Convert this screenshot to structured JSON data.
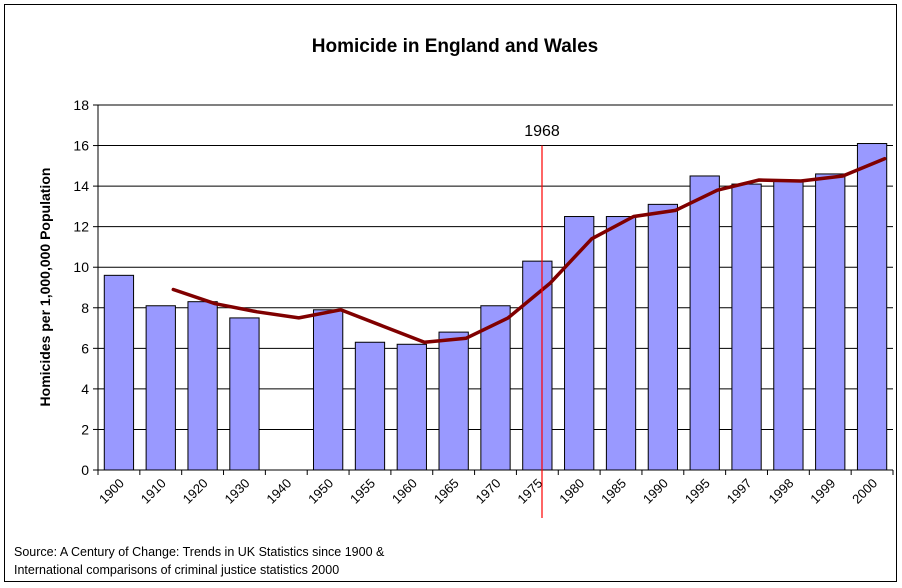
{
  "chart_data": {
    "type": "bar",
    "title": "Homicide in England and Wales",
    "ylabel": "Homicides per 1,000,000 Population",
    "xlabel": "",
    "ylim": [
      0,
      18
    ],
    "yticks": [
      0,
      2,
      4,
      6,
      8,
      10,
      12,
      14,
      16,
      18
    ],
    "grid": true,
    "categories": [
      "1900",
      "1910",
      "1920",
      "1930",
      "1940",
      "1950",
      "1955",
      "1960",
      "1965",
      "1970",
      "1975",
      "1980",
      "1985",
      "1990",
      "1995",
      "1997",
      "1998",
      "1999",
      "2000"
    ],
    "series": [
      {
        "type": "bar",
        "color": "#9999ff",
        "values": [
          9.6,
          8.1,
          8.3,
          7.5,
          null,
          7.9,
          6.3,
          6.2,
          6.8,
          8.1,
          10.3,
          12.5,
          12.5,
          13.1,
          14.5,
          14.1,
          14.3,
          14.6,
          16.1
        ]
      },
      {
        "type": "line",
        "color": "#800000",
        "values": [
          null,
          8.9,
          8.2,
          7.8,
          7.5,
          7.9,
          7.1,
          6.3,
          6.5,
          7.5,
          9.2,
          11.4,
          12.5,
          12.8,
          13.8,
          14.3,
          14.25,
          14.5,
          15.35
        ]
      }
    ],
    "annotation": {
      "label": "1968",
      "color": "#ff0000"
    }
  },
  "source_lines": [
    "Source: A Century of Change: Trends in UK Statistics since 1900 &",
    "International comparisons of criminal justice statistics 2000"
  ]
}
